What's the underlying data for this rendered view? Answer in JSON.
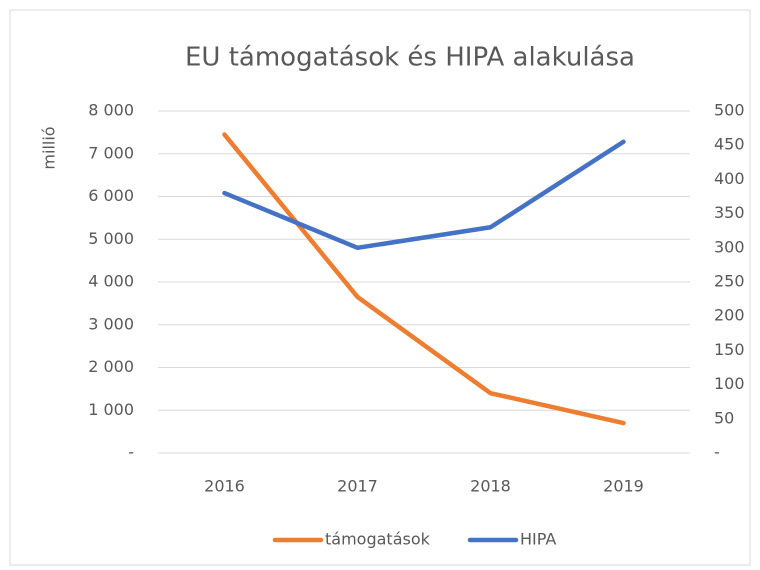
{
  "chart_data": {
    "type": "line",
    "title": "EU támogatások és HIPA alakulása",
    "ylabel": "millió",
    "categories": [
      "2016",
      "2017",
      "2018",
      "2019"
    ],
    "series": [
      {
        "name": "támogatások",
        "color": "#ED7D31",
        "values": [
          7450,
          3650,
          1400,
          700
        ]
      },
      {
        "name": "HIPA",
        "color": "#4472C4",
        "axis": "y2",
        "values": [
          380,
          300,
          330,
          455
        ]
      }
    ],
    "ylim": [
      0,
      8000
    ],
    "yticks": [
      {
        "value": 0,
        "label": "-"
      },
      {
        "value": 1000,
        "label": "1 000"
      },
      {
        "value": 2000,
        "label": "2 000"
      },
      {
        "value": 3000,
        "label": "3 000"
      },
      {
        "value": 4000,
        "label": "4 000"
      },
      {
        "value": 5000,
        "label": "5 000"
      },
      {
        "value": 6000,
        "label": "6 000"
      },
      {
        "value": 7000,
        "label": "7 000"
      },
      {
        "value": 8000,
        "label": "8 000"
      }
    ],
    "y2lim": [
      0,
      500
    ],
    "y2ticks": [
      {
        "value": 0,
        "label": "-"
      },
      50,
      100,
      150,
      200,
      250,
      300,
      350,
      400,
      450,
      500
    ],
    "grid": true,
    "legend": "bottom"
  }
}
